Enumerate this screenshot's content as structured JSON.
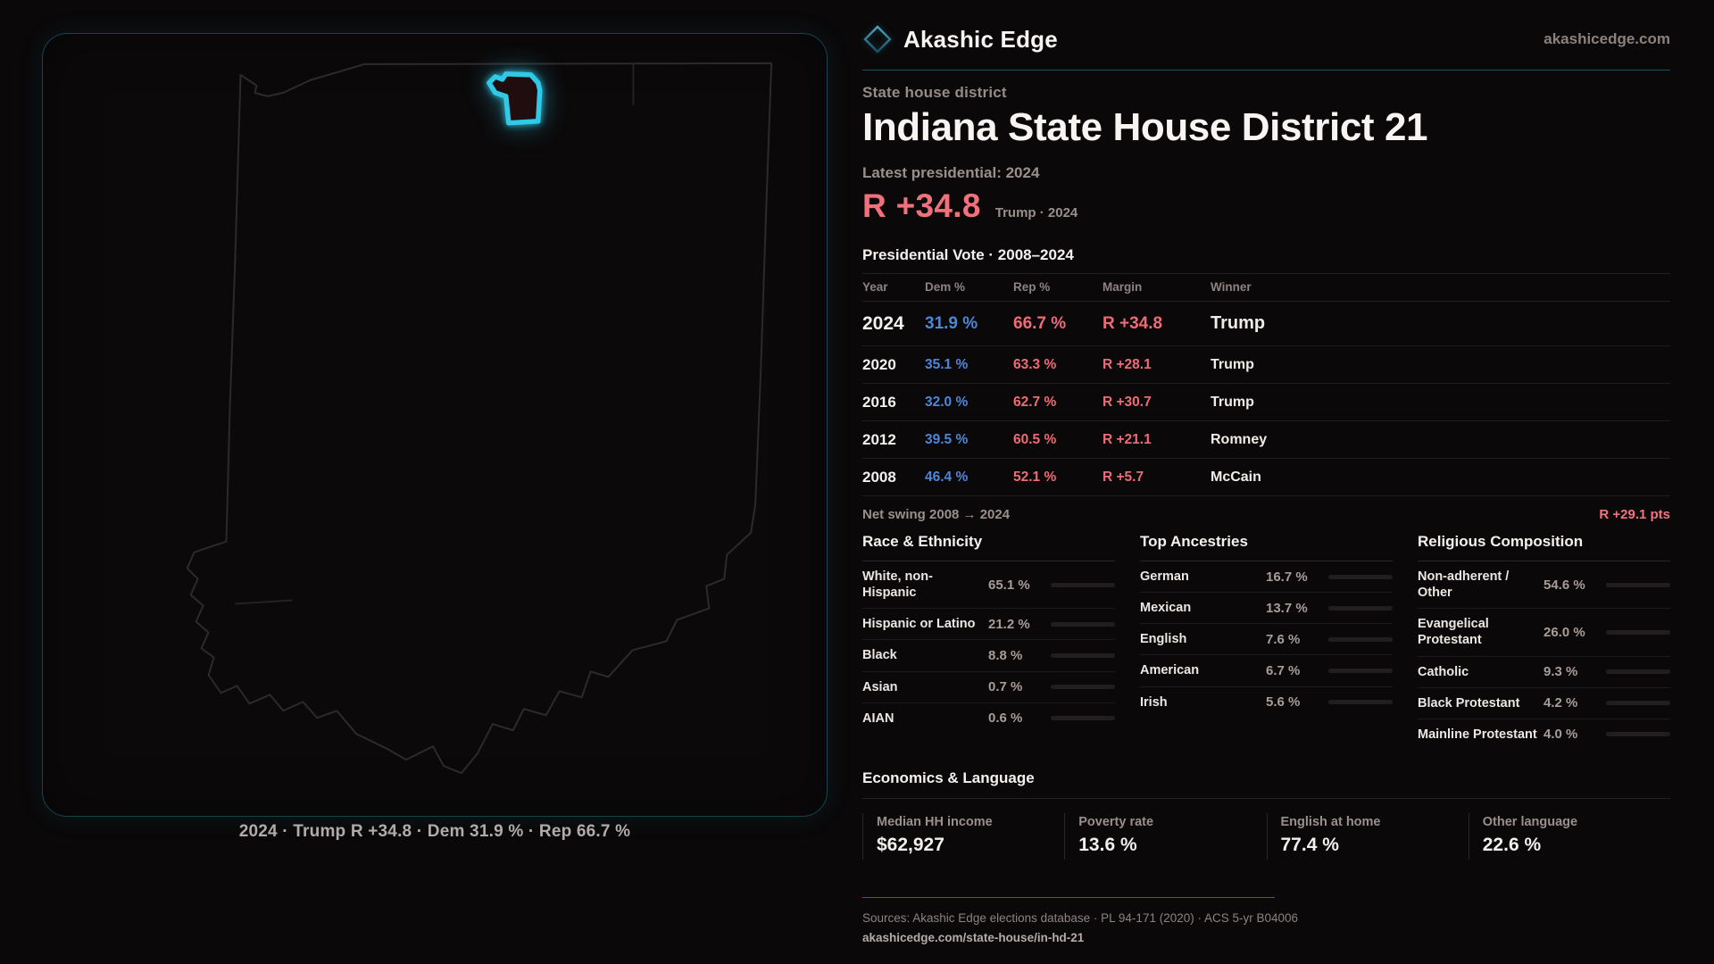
{
  "brand": {
    "name": "Akashic Edge",
    "domain": "akashicedge.com"
  },
  "header": {
    "kicker": "State house district",
    "title": "Indiana State House District 21",
    "latest_label": "Latest presidential: 2024",
    "headline_margin": "R +34.8",
    "headline_context": "Trump · 2024"
  },
  "colors": {
    "dem_blue": "#4e86da",
    "rep_red": "#ee6b76",
    "accent_teal": "#30c9e8"
  },
  "table": {
    "title": "Presidential Vote · 2008–2024",
    "columns": [
      "Year",
      "Dem %",
      "Rep %",
      "Margin",
      "Winner"
    ],
    "rows": [
      {
        "year": "2024",
        "dem": "31.9 %",
        "rep": "66.7 %",
        "margin": "R +34.8",
        "winner": "Trump"
      },
      {
        "year": "2020",
        "dem": "35.1 %",
        "rep": "63.3 %",
        "margin": "R +28.1",
        "winner": "Trump"
      },
      {
        "year": "2016",
        "dem": "32.0 %",
        "rep": "62.7 %",
        "margin": "R +30.7",
        "winner": "Trump"
      },
      {
        "year": "2012",
        "dem": "39.5 %",
        "rep": "60.5 %",
        "margin": "R +21.1",
        "winner": "Romney"
      },
      {
        "year": "2008",
        "dem": "46.4 %",
        "rep": "52.1 %",
        "margin": "R +5.7",
        "winner": "McCain"
      }
    ]
  },
  "net_swing": {
    "label": "Net swing 2008 → 2024",
    "value": "R +29.1 pts"
  },
  "panels": [
    {
      "title": "Race & Ethnicity",
      "rows": [
        {
          "label": "White, non-Hispanic",
          "value": "65.1 %",
          "pct": 65.1,
          "color": "#93a5c6"
        },
        {
          "label": "Hispanic or Latino",
          "value": "21.2 %",
          "pct": 21.2,
          "color": "#e0a23b"
        },
        {
          "label": "Black",
          "value": "8.8 %",
          "pct": 8.8,
          "color": "#8a7fe0"
        },
        {
          "label": "Asian",
          "value": "0.7 %",
          "pct": 0.7,
          "color": "#9fb4cc"
        },
        {
          "label": "AIAN",
          "value": "0.6 %",
          "pct": 0.6,
          "color": "#9fb4cc"
        }
      ]
    },
    {
      "title": "Top Ancestries",
      "rows": [
        {
          "label": "German",
          "value": "16.7 %",
          "pct": 16.7,
          "color": "#8fa6c4"
        },
        {
          "label": "Mexican",
          "value": "13.7 %",
          "pct": 13.7,
          "color": "#e0a23b"
        },
        {
          "label": "English",
          "value": "7.6 %",
          "pct": 7.6,
          "color": "#9db3cf"
        },
        {
          "label": "American",
          "value": "6.7 %",
          "pct": 6.7,
          "color": "#9db3cf"
        },
        {
          "label": "Irish",
          "value": "5.6 %",
          "pct": 5.6,
          "color": "#9db3cf"
        }
      ]
    },
    {
      "title": "Religious Composition",
      "rows": [
        {
          "label": "Non-adherent / Other",
          "value": "54.6 %",
          "pct": 54.6,
          "color": "#76828f"
        },
        {
          "label": "Evangelical Protestant",
          "value": "26.0 %",
          "pct": 26.0,
          "color": "#e46f78"
        },
        {
          "label": "Catholic",
          "value": "9.3 %",
          "pct": 9.3,
          "color": "#e6b83a"
        },
        {
          "label": "Black Protestant",
          "value": "4.2 %",
          "pct": 4.2,
          "color": "#8a63f2"
        },
        {
          "label": "Mainline Protestant",
          "value": "4.0 %",
          "pct": 4.0,
          "color": "#4a7ee8"
        }
      ]
    }
  ],
  "economics": {
    "title": "Economics & Language",
    "stats": [
      {
        "label": "Median HH income",
        "value": "$62,927"
      },
      {
        "label": "Poverty rate",
        "value": "13.6 %"
      },
      {
        "label": "English at home",
        "value": "77.4 %"
      },
      {
        "label": "Other language",
        "value": "22.6 %"
      }
    ]
  },
  "map": {
    "caption": "2024 · Trump R +34.8 · Dem 31.9 % · Rep 66.7 %"
  },
  "footer": {
    "sources": "Sources: Akashic Edge elections database · PL 94-171 (2020) · ACS 5-yr B04006",
    "permalink": "akashicedge.com/state-house/in-hd-21"
  }
}
